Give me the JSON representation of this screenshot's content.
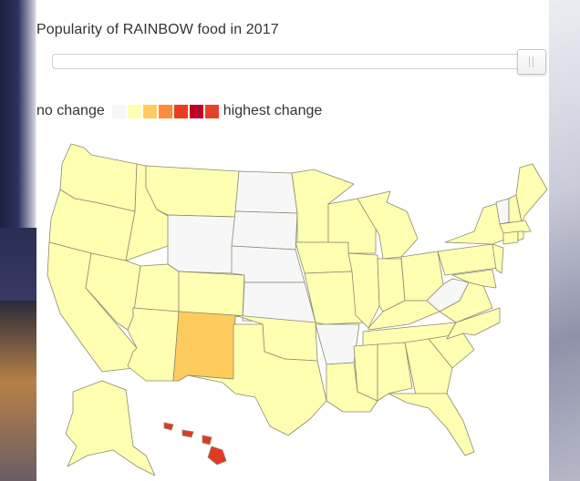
{
  "title": "Popularity of RAINBOW food in 2017",
  "slider": {
    "value": 1.0
  },
  "legend": {
    "left_label": "no change",
    "right_label": "highest change",
    "colors": [
      "#f7f7f7",
      "#ffffb2",
      "#fecc5c",
      "#fd8d3c",
      "#f03b20",
      "#bd0026",
      "#e8402a"
    ]
  },
  "colors": {
    "none": "#f7f7f7",
    "low": "#ffffb2",
    "medium": "#fecc5c",
    "high": "#e03a24"
  },
  "states": {
    "no_change": [
      "North Dakota",
      "South Dakota",
      "Wyoming",
      "Nebraska",
      "Kansas",
      "Arkansas",
      "West Virginia",
      "Vermont"
    ],
    "medium": [
      "New Mexico"
    ],
    "high": [
      "Hawaii"
    ],
    "low": [
      "all other states"
    ]
  }
}
